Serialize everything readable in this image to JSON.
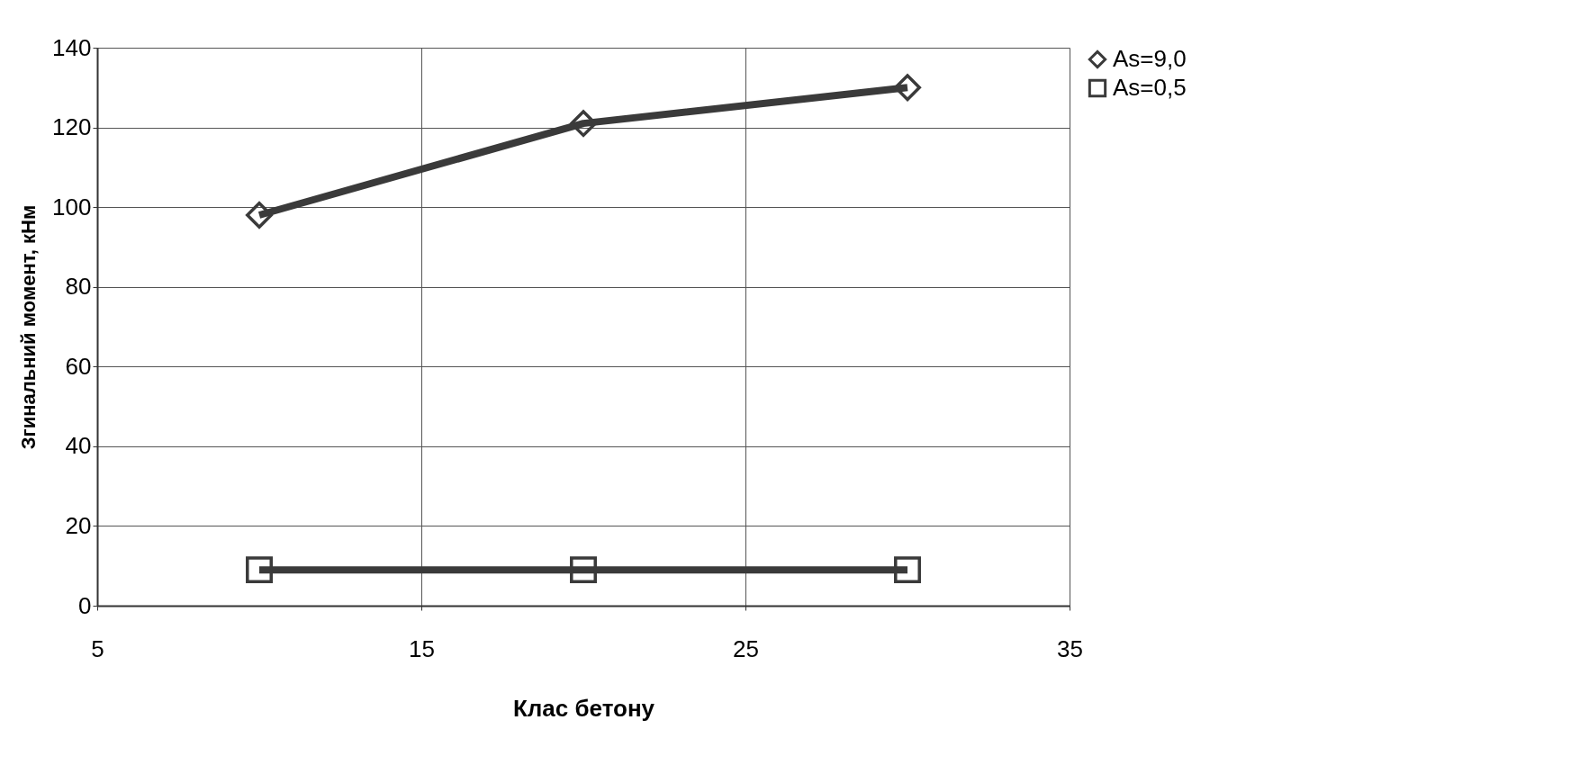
{
  "chart_data": {
    "type": "line",
    "xlabel": "Клас бетону",
    "ylabel": "Згинальний момент, кНм",
    "x": [
      10,
      20,
      30
    ],
    "series": [
      {
        "name": "As=9,0",
        "color": "#3a3a3a",
        "marker": "diamond",
        "values": [
          98,
          121,
          130
        ]
      },
      {
        "name": "As=0,5",
        "color": "#3a3a3a",
        "marker": "square",
        "values": [
          9,
          9,
          9
        ]
      }
    ],
    "xlim": [
      5,
      35
    ],
    "xticks": [
      5,
      15,
      25,
      35
    ],
    "ylim": [
      0,
      140
    ],
    "yticks": [
      0,
      20,
      40,
      60,
      80,
      100,
      120,
      140
    ],
    "grid": true,
    "legend": "right",
    "line_style": "solid"
  }
}
